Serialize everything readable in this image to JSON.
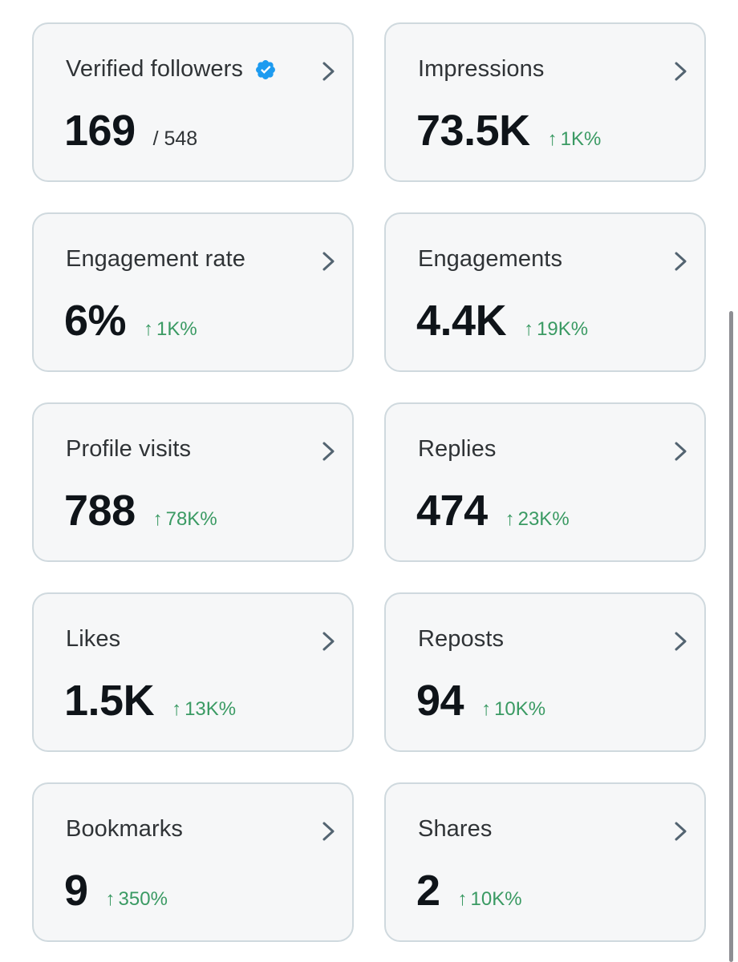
{
  "cards": [
    {
      "title": "Verified followers",
      "value": "169",
      "sub": "/ 548"
    },
    {
      "title": "Impressions",
      "value": "73.5K",
      "change": "1K%"
    },
    {
      "title": "Engagement rate",
      "value": "6%",
      "change": "1K%"
    },
    {
      "title": "Engagements",
      "value": "4.4K",
      "change": "19K%"
    },
    {
      "title": "Profile visits",
      "value": "788",
      "change": "78K%"
    },
    {
      "title": "Replies",
      "value": "474",
      "change": "23K%"
    },
    {
      "title": "Likes",
      "value": "1.5K",
      "change": "13K%"
    },
    {
      "title": "Reposts",
      "value": "94",
      "change": "10K%"
    },
    {
      "title": "Bookmarks",
      "value": "9",
      "change": "350%"
    },
    {
      "title": "Shares",
      "value": "2",
      "change": "10K%"
    }
  ],
  "icons": {
    "chevron": "chevron-right-icon",
    "verified": "verified-badge-icon",
    "up_arrow": "arrow-up-icon"
  },
  "colors": {
    "card_background": "#f6f7f8",
    "card_border": "#cfd9de",
    "positive_change": "#3a9a63",
    "verified_blue": "#1d9bf0",
    "value_text": "#0f1419"
  }
}
